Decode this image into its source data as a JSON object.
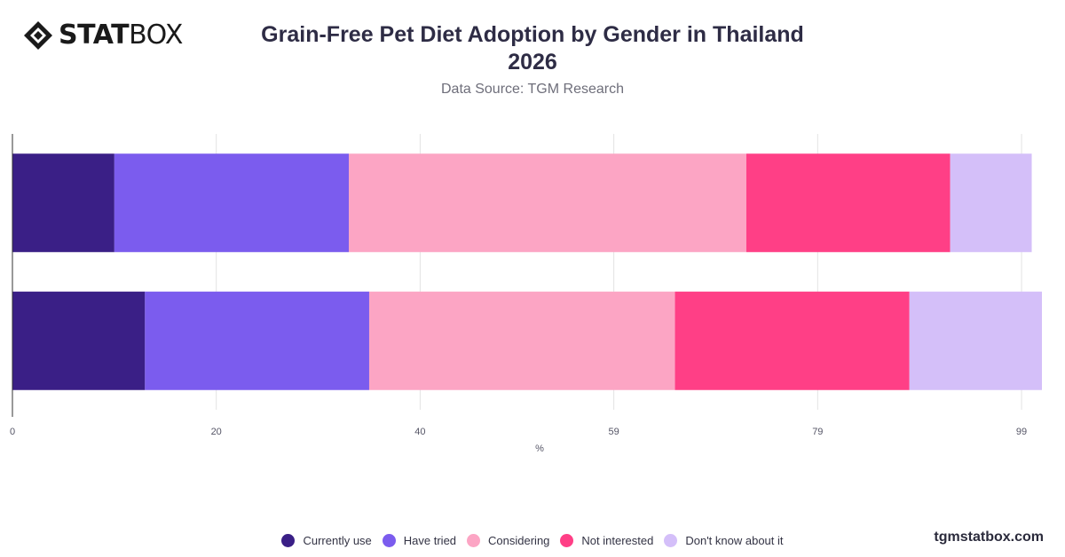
{
  "header": {
    "logo_text_bold": "STAT",
    "logo_text_light": "BOX",
    "title_line1": "Grain-Free Pet Diet Adoption by Gender in Thailand",
    "title_line2": "2026",
    "subtitle": "Data Source: TGM Research"
  },
  "footer": {
    "brand": "tgmstatbox.com"
  },
  "chart_data": {
    "type": "bar",
    "orientation": "horizontal",
    "stacked": true,
    "categories": [
      "",
      ""
    ],
    "series": [
      {
        "name": "Currently use",
        "color": "#3a1f86",
        "values": [
          10,
          13
        ]
      },
      {
        "name": "Have tried",
        "color": "#7b5cee",
        "values": [
          23,
          22
        ]
      },
      {
        "name": "Considering",
        "color": "#fca5c4",
        "values": [
          39,
          30
        ]
      },
      {
        "name": "Not interested",
        "color": "#ff3f86",
        "values": [
          20,
          23
        ]
      },
      {
        "name": "Don't know about it",
        "color": "#d4bff9",
        "values": [
          8,
          13
        ]
      }
    ],
    "xlabel": "%",
    "xticks": [
      "0",
      "20",
      "40",
      "59",
      "79",
      "99"
    ],
    "xlim": [
      0,
      101
    ],
    "grid": true,
    "legend_position": "bottom"
  }
}
